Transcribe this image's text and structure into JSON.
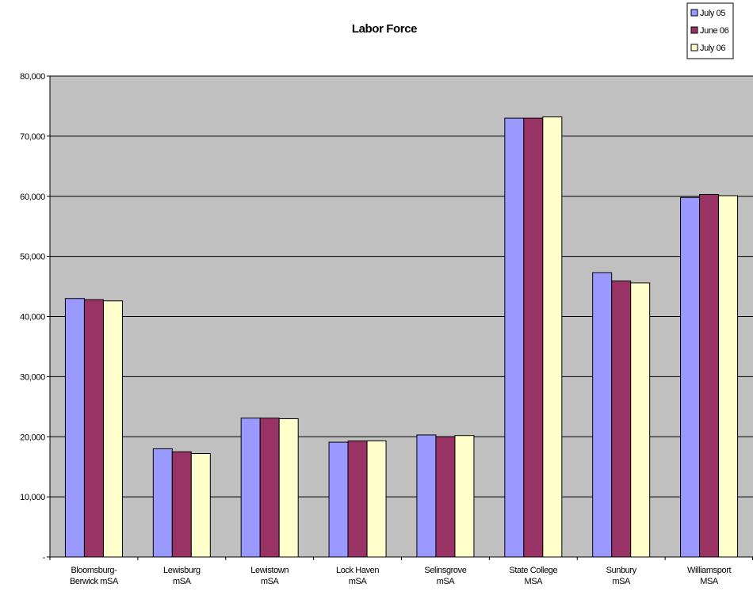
{
  "chart_data": {
    "type": "bar",
    "title": "Labor Force",
    "categories": [
      [
        "Bloomsburg-",
        "Berwick mSA"
      ],
      [
        "Lewisburg",
        "mSA"
      ],
      [
        "Lewistown",
        "mSA"
      ],
      [
        "Lock Haven",
        "mSA"
      ],
      [
        "Selinsgrove",
        "mSA"
      ],
      [
        "State College",
        "MSA"
      ],
      [
        "Sunbury",
        "mSA"
      ],
      [
        "Williamsport",
        "MSA"
      ]
    ],
    "series": [
      {
        "name": "July 05",
        "color": "#9999ff",
        "values": [
          43000,
          18000,
          23100,
          19100,
          20300,
          73000,
          47300,
          59800
        ]
      },
      {
        "name": "June 06",
        "color": "#993366",
        "values": [
          42800,
          17500,
          23100,
          19300,
          20000,
          73000,
          45900,
          60300
        ]
      },
      {
        "name": "July 06",
        "color": "#ffffcc",
        "values": [
          42600,
          17200,
          23000,
          19300,
          20200,
          73200,
          45600,
          60100
        ]
      }
    ],
    "ylim": [
      0,
      80000
    ],
    "yticks": [
      0,
      10000,
      20000,
      30000,
      40000,
      50000,
      60000,
      70000,
      80000
    ],
    "ytick_labels": [
      "-",
      "10,000",
      "20,000",
      "30,000",
      "40,000",
      "50,000",
      "60,000",
      "70,000",
      "80,000"
    ],
    "grid": true,
    "legend_position": "top-right",
    "plot_background": "#c0c0c0",
    "xlabel": "",
    "ylabel": ""
  }
}
